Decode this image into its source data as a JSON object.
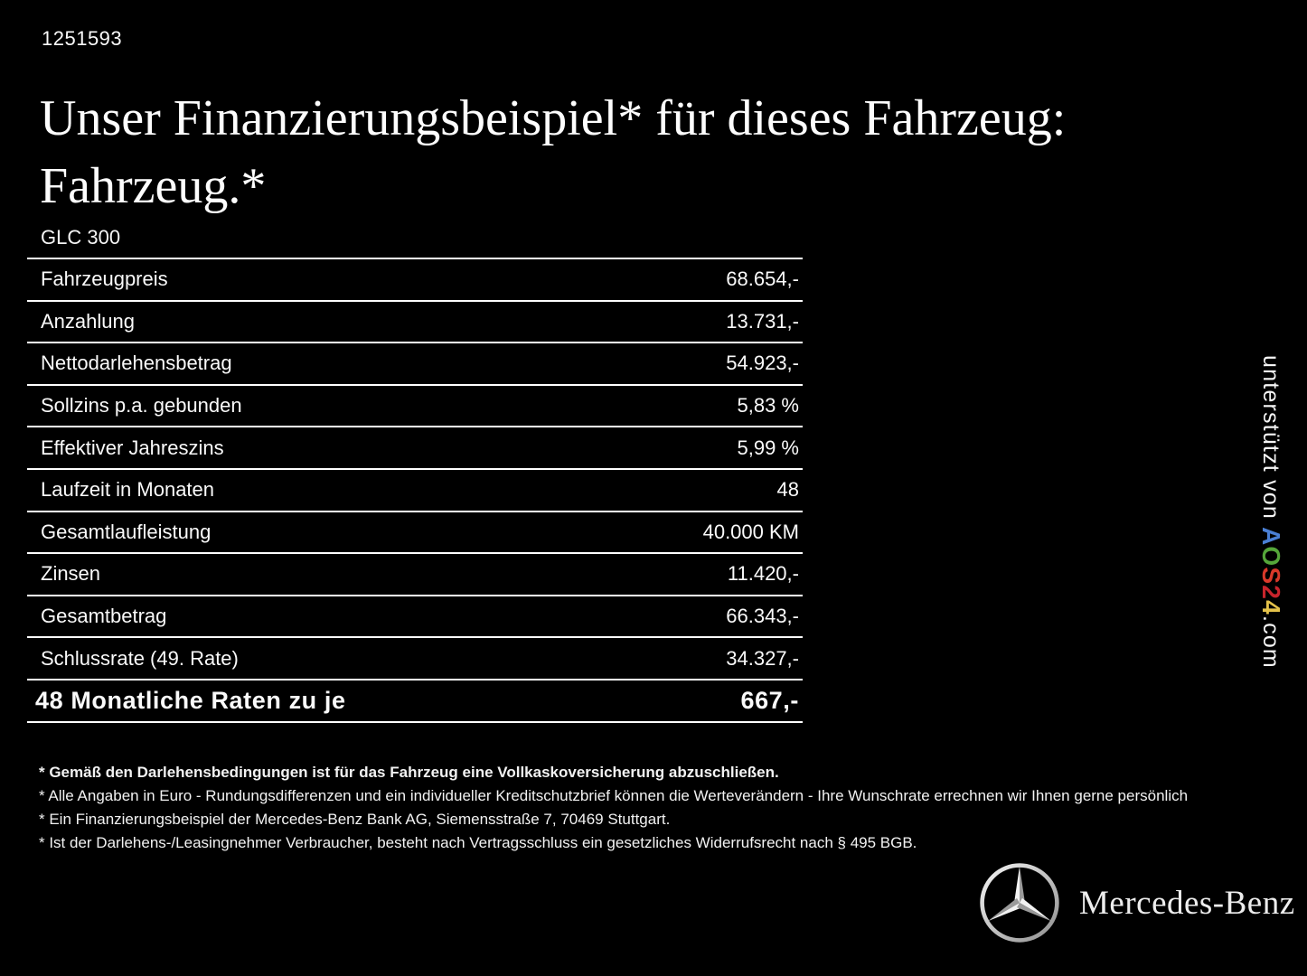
{
  "doc_id": "1251593",
  "title": {
    "line1": "Unser Finanzierungsbeispiel* für dieses Fahrzeug:",
    "line2": "Fahrzeug.*"
  },
  "model": "GLC 300",
  "table": {
    "rows": [
      {
        "label": "Fahrzeugpreis",
        "value": "68.654,-"
      },
      {
        "label": "Anzahlung",
        "value": "13.731,-"
      },
      {
        "label": "Nettodarlehensbetrag",
        "value": "54.923,-"
      },
      {
        "label": "Sollzins p.a. gebunden",
        "value": "5,83 %"
      },
      {
        "label": "Effektiver Jahreszins",
        "value": "5,99 %"
      },
      {
        "label": "Laufzeit in Monaten",
        "value": "48"
      },
      {
        "label": "Gesamtlaufleistung",
        "value": "40.000 KM"
      },
      {
        "label": "Zinsen",
        "value": "11.420,-"
      },
      {
        "label": "Gesamtbetrag",
        "value": "66.343,-"
      },
      {
        "label": "Schlussrate (49. Rate)",
        "value": "34.327,-"
      }
    ],
    "summary_row": {
      "label": "48 Monatliche Raten zu je",
      "value": "667,-"
    }
  },
  "footnotes": [
    {
      "text": "* Gemäß den Darlehensbedingungen ist für das Fahrzeug eine Vollkaskoversicherung abzuschließen.",
      "bold": true
    },
    {
      "text": "* Alle Angaben in Euro - Rundungsdifferenzen und ein individueller Kreditschutzbrief können die Werteverändern - Ihre Wunschrate errechnen wir Ihnen gerne persönlich",
      "bold": false
    },
    {
      "text": "* Ein Finanzierungsbeispiel der Mercedes-Benz Bank AG, Siemensstraße 7, 70469 Stuttgart.",
      "bold": false
    },
    {
      "text": "* Ist der Darlehens-/Leasingnehmer Verbraucher, besteht nach Vertragsschluss ein gesetzliches Widerrufsrecht nach § 495 BGB.",
      "bold": false
    }
  ],
  "side_label": {
    "prefix": "unterstützt von ",
    "brand_letters": [
      {
        "ch": "A",
        "color": "#4a7fd4"
      },
      {
        "ch": "O",
        "color": "#55a63a"
      },
      {
        "ch": "S",
        "color": "#d9392a"
      },
      {
        "ch": "2",
        "color": "#c7242c"
      },
      {
        "ch": "4",
        "color": "#e4c24b"
      }
    ],
    "suffix": ".com"
  },
  "brand_footer": {
    "name": "Mercedes-Benz",
    "star_icon": "mercedes-star-icon"
  },
  "colors": {
    "background": "#000000",
    "text": "#ffffff",
    "rule_lines": "#ffffff",
    "logo_silver_light": "#f2f2f2",
    "logo_silver_dark": "#9a9a9a"
  }
}
